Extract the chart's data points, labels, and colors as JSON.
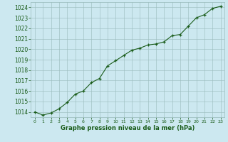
{
  "x": [
    0,
    1,
    2,
    3,
    4,
    5,
    6,
    7,
    8,
    9,
    10,
    11,
    12,
    13,
    14,
    15,
    16,
    17,
    18,
    19,
    20,
    21,
    22,
    23
  ],
  "y": [
    1014.0,
    1013.7,
    1013.9,
    1014.3,
    1014.9,
    1015.7,
    1016.0,
    1016.8,
    1017.2,
    1018.4,
    1018.9,
    1019.4,
    1019.9,
    1020.1,
    1020.4,
    1020.5,
    1020.7,
    1021.3,
    1021.4,
    1022.2,
    1023.0,
    1023.3,
    1023.9,
    1024.1
  ],
  "line_color": "#1a5c1a",
  "marker": "+",
  "background_color": "#cce8f0",
  "grid_color": "#99bbbb",
  "xlabel": "Graphe pression niveau de la mer (hPa)",
  "xlabel_color": "#1a5c1a",
  "tick_color": "#1a5c1a",
  "ylim_min": 1013.5,
  "ylim_max": 1024.5,
  "yticks": [
    1014,
    1015,
    1016,
    1017,
    1018,
    1019,
    1020,
    1021,
    1022,
    1023,
    1024
  ],
  "xticks": [
    0,
    1,
    2,
    3,
    4,
    5,
    6,
    7,
    8,
    9,
    10,
    11,
    12,
    13,
    14,
    15,
    16,
    17,
    18,
    19,
    20,
    21,
    22,
    23
  ]
}
